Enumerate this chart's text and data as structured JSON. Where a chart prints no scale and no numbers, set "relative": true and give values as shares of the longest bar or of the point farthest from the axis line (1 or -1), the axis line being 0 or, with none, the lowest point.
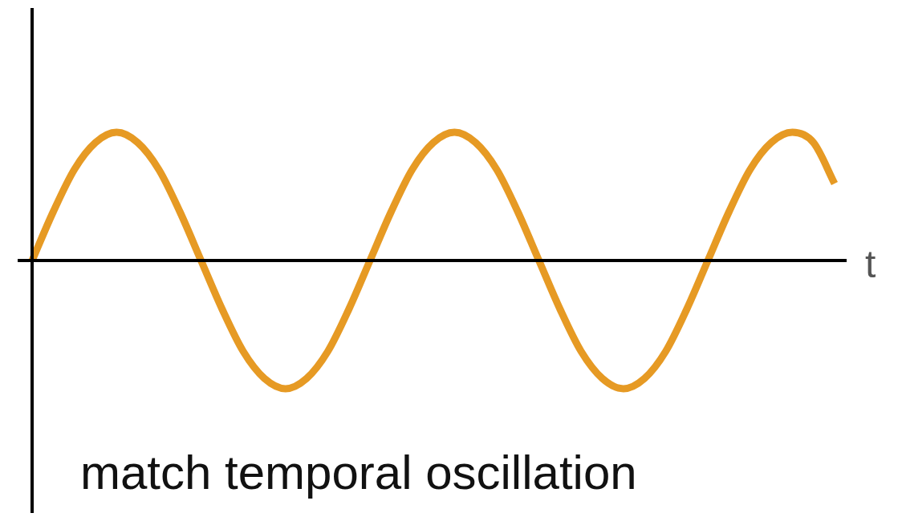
{
  "chart_data": {
    "type": "line",
    "relative": true,
    "xlabel": "t",
    "annotations": [
      "match temporal oscillation"
    ],
    "categories": [
      null,
      null,
      null,
      null,
      null,
      null,
      null,
      null,
      null,
      null,
      null,
      null,
      null,
      null,
      null,
      null,
      null,
      null,
      null,
      null,
      null,
      null,
      null,
      null,
      null,
      null,
      null,
      null,
      null,
      null,
      null,
      null,
      null,
      null,
      null,
      null,
      null,
      null,
      null
    ],
    "series": [
      {
        "color": "#e69a24",
        "values": [
          0,
          0.38,
          0.71,
          0.92,
          1,
          0.92,
          0.71,
          0.38,
          0,
          -0.38,
          -0.71,
          -0.92,
          -1,
          -0.92,
          -0.71,
          -0.38,
          0,
          0.38,
          0.71,
          0.92,
          1,
          0.92,
          0.71,
          0.38,
          0,
          -0.38,
          -0.71,
          -0.92,
          -1,
          -0.92,
          -0.71,
          -0.38,
          0,
          0.38,
          0.71,
          0.92,
          1,
          0.92,
          0.6
        ]
      }
    ],
    "legend": false,
    "marker": "none",
    "line_style": "solid"
  }
}
